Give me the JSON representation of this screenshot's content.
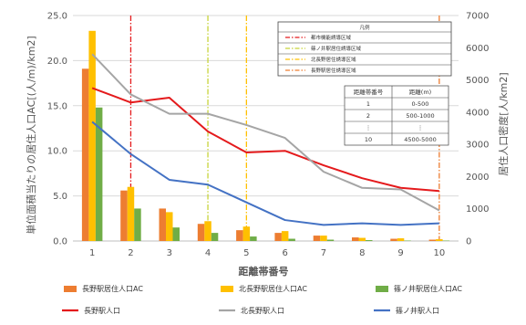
{
  "chart_data": {
    "type": "bar",
    "title": "",
    "xlabel": "距離帯番号",
    "ylabel": "単位面積当たりの居住人口AC[(人/m)/km2]",
    "y2label": "居住人口密度[人/km2]",
    "categories": [
      "1",
      "2",
      "3",
      "4",
      "5",
      "6",
      "7",
      "8",
      "9",
      "10"
    ],
    "ylim": [
      0,
      25
    ],
    "y_ticks": [
      "0.0",
      "5.0",
      "10.0",
      "15.0",
      "20.0",
      "25.0"
    ],
    "y2lim": [
      0,
      7000
    ],
    "y2_ticks": [
      "0",
      "1000",
      "2000",
      "3000",
      "4000",
      "5000",
      "6000",
      "7000"
    ],
    "grid": true,
    "legend_position": "bottom",
    "bar_series": [
      {
        "name": "長野駅居住人口AC",
        "color": "#ED7D31",
        "values": [
          19.1,
          5.6,
          3.6,
          1.9,
          1.2,
          0.9,
          0.6,
          0.4,
          0.25,
          0.15
        ]
      },
      {
        "name": "北長野駅居住人口AC",
        "color": "#FFC000",
        "values": [
          23.3,
          6.0,
          3.2,
          2.2,
          1.6,
          1.1,
          0.6,
          0.35,
          0.3,
          0.2
        ]
      },
      {
        "name": "篠ノ井駅居住人口AC",
        "color": "#70AD47",
        "values": [
          14.8,
          3.6,
          1.5,
          0.9,
          0.5,
          0.25,
          0.15,
          0.1,
          0.05,
          0.05
        ]
      }
    ],
    "line_series": [
      {
        "name": "長野駅人口",
        "color": "#E41A1C",
        "axis": "right",
        "values": [
          4750,
          4300,
          4450,
          3400,
          2750,
          2800,
          2350,
          1950,
          1650,
          1550
        ]
      },
      {
        "name": "北長野駅人口",
        "color": "#A5A5A5",
        "axis": "right",
        "values": [
          5800,
          4550,
          3950,
          3950,
          3600,
          3200,
          2150,
          1650,
          1600,
          950
        ]
      },
      {
        "name": "篠ノ井駅人口",
        "color": "#4472C4",
        "axis": "right",
        "values": [
          3700,
          2700,
          1900,
          1750,
          1200,
          650,
          500,
          550,
          500,
          550
        ]
      }
    ],
    "vertical_markers": [
      {
        "at": 2,
        "color": "#E41A1C",
        "style": "dash-dot"
      },
      {
        "at": 4,
        "color": "#C8D43A",
        "style": "dash-dot"
      },
      {
        "at": 5,
        "color": "#FFC000",
        "style": "dash-dot"
      },
      {
        "at": 10,
        "color": "#ED7D31",
        "style": "dash-dot"
      }
    ],
    "legend_box": {
      "title": "凡例",
      "items": [
        {
          "label": "都市機能誘導区域",
          "color": "#E41A1C"
        },
        {
          "label": "篠ノ井駅居住誘導区域",
          "color": "#C8D43A"
        },
        {
          "label": "北長野居住誘導区域",
          "color": "#FFC000"
        },
        {
          "label": "長野駅居住誘導区域",
          "color": "#ED7D31"
        }
      ]
    },
    "distance_table": {
      "headers": [
        "距離帯番号",
        "距離(m)"
      ],
      "rows": [
        [
          "1",
          "0-500"
        ],
        [
          "2",
          "500-1000"
        ],
        [
          "⋮",
          "⋮"
        ],
        [
          "10",
          "4500-5000"
        ]
      ]
    }
  }
}
